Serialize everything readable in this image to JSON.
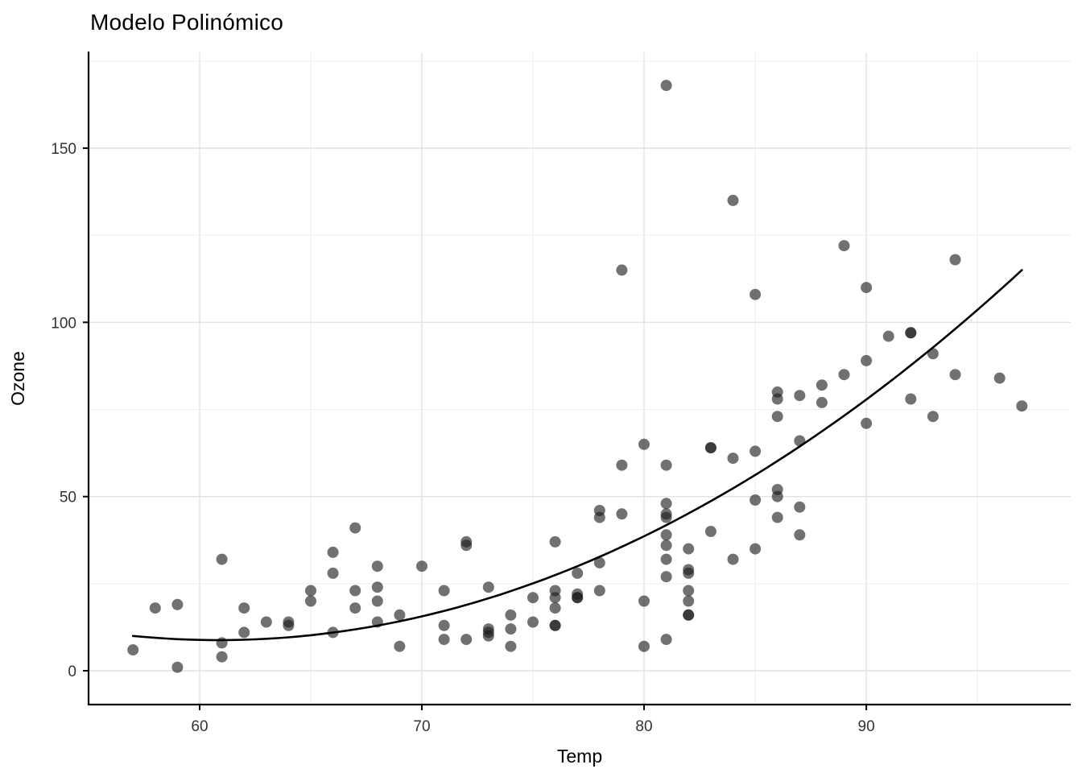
{
  "title": "Modelo Polinómico",
  "chart_data": {
    "type": "scatter",
    "title": "Modelo Polinómico",
    "xlabel": "Temp",
    "ylabel": "Ozone",
    "xlim": [
      55,
      99.2
    ],
    "ylim": [
      -9.7,
      177.5
    ],
    "x_ticks": [
      60,
      70,
      80,
      90
    ],
    "y_ticks": [
      0,
      50,
      100,
      150
    ],
    "x_minor": [
      65,
      75,
      85,
      95
    ],
    "y_minor": [
      25,
      75,
      125,
      175
    ],
    "grid": true,
    "legend": "none",
    "point_radius": 7,
    "point_opacity": 0.62,
    "colors": {
      "point": "#1a1a1a",
      "line": "#000000",
      "grid_major": "#e2e2e2",
      "grid_minor": "#efefef",
      "axis": "#000000",
      "tick_label": "#333333"
    },
    "points": [
      [
        67,
        41
      ],
      [
        72,
        36
      ],
      [
        74,
        12
      ],
      [
        62,
        18
      ],
      [
        66,
        28
      ],
      [
        65,
        23
      ],
      [
        59,
        19
      ],
      [
        61,
        8
      ],
      [
        74,
        7
      ],
      [
        69,
        16
      ],
      [
        66,
        11
      ],
      [
        68,
        14
      ],
      [
        58,
        18
      ],
      [
        64,
        14
      ],
      [
        66,
        34
      ],
      [
        57,
        6
      ],
      [
        68,
        30
      ],
      [
        62,
        11
      ],
      [
        59,
        1
      ],
      [
        73,
        11
      ],
      [
        61,
        4
      ],
      [
        61,
        32
      ],
      [
        67,
        23
      ],
      [
        81,
        45
      ],
      [
        79,
        115
      ],
      [
        76,
        37
      ],
      [
        82,
        29
      ],
      [
        90,
        71
      ],
      [
        87,
        39
      ],
      [
        82,
        23
      ],
      [
        77,
        21
      ],
      [
        72,
        37
      ],
      [
        65,
        20
      ],
      [
        73,
        12
      ],
      [
        76,
        13
      ],
      [
        84,
        135
      ],
      [
        85,
        49
      ],
      [
        81,
        32
      ],
      [
        83,
        64
      ],
      [
        83,
        40
      ],
      [
        88,
        77
      ],
      [
        92,
        97
      ],
      [
        92,
        97
      ],
      [
        89,
        85
      ],
      [
        73,
        10
      ],
      [
        81,
        27
      ],
      [
        80,
        7
      ],
      [
        81,
        48
      ],
      [
        82,
        35
      ],
      [
        84,
        61
      ],
      [
        87,
        79
      ],
      [
        85,
        63
      ],
      [
        74,
        16
      ],
      [
        86,
        80
      ],
      [
        85,
        108
      ],
      [
        82,
        20
      ],
      [
        86,
        52
      ],
      [
        88,
        82
      ],
      [
        86,
        50
      ],
      [
        83,
        64
      ],
      [
        81,
        59
      ],
      [
        81,
        39
      ],
      [
        81,
        9
      ],
      [
        82,
        16
      ],
      [
        86,
        78
      ],
      [
        85,
        35
      ],
      [
        87,
        66
      ],
      [
        89,
        122
      ],
      [
        90,
        89
      ],
      [
        90,
        110
      ],
      [
        86,
        44
      ],
      [
        82,
        28
      ],
      [
        80,
        65
      ],
      [
        77,
        22
      ],
      [
        79,
        59
      ],
      [
        76,
        23
      ],
      [
        78,
        31
      ],
      [
        78,
        44
      ],
      [
        77,
        21
      ],
      [
        72,
        9
      ],
      [
        79,
        45
      ],
      [
        81,
        168
      ],
      [
        86,
        73
      ],
      [
        97,
        76
      ],
      [
        94,
        118
      ],
      [
        96,
        84
      ],
      [
        94,
        85
      ],
      [
        91,
        96
      ],
      [
        92,
        78
      ],
      [
        93,
        73
      ],
      [
        93,
        91
      ],
      [
        87,
        47
      ],
      [
        84,
        32
      ],
      [
        80,
        20
      ],
      [
        78,
        23
      ],
      [
        75,
        21
      ],
      [
        73,
        24
      ],
      [
        81,
        44
      ],
      [
        76,
        21
      ],
      [
        77,
        28
      ],
      [
        71,
        9
      ],
      [
        71,
        13
      ],
      [
        78,
        46
      ],
      [
        67,
        18
      ],
      [
        76,
        13
      ],
      [
        68,
        24
      ],
      [
        82,
        16
      ],
      [
        64,
        13
      ],
      [
        71,
        23
      ],
      [
        81,
        36
      ],
      [
        69,
        7
      ],
      [
        63,
        14
      ],
      [
        70,
        30
      ],
      [
        75,
        14
      ],
      [
        76,
        18
      ],
      [
        68,
        20
      ]
    ],
    "fit": {
      "model": "quadratic",
      "center": 77,
      "a": 0.08125,
      "b": 2.625,
      "c": 30,
      "x_start": 57,
      "x_end": 97
    }
  }
}
